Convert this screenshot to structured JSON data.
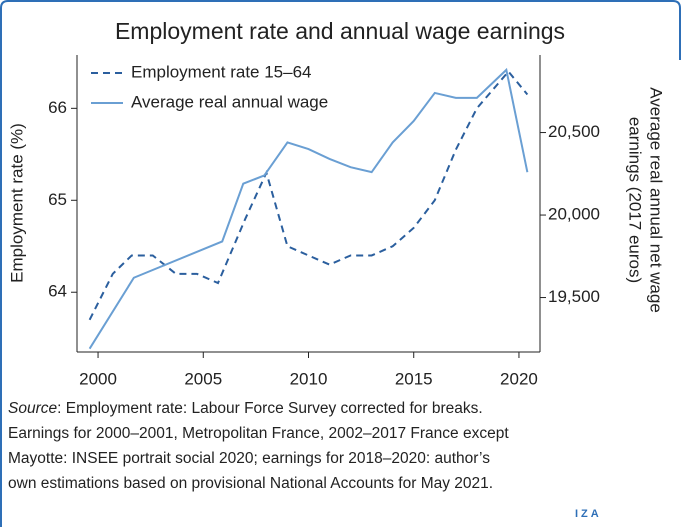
{
  "chart_data": {
    "type": "line",
    "title": "Employment rate and annual wage earnings",
    "ylabel": "Employment rate (%)",
    "y2label": [
      "Average real annual net wage",
      "earnings (2017 euros)"
    ],
    "xlim": [
      1999,
      2021
    ],
    "xticks": [
      2000,
      2005,
      2010,
      2015,
      2020
    ],
    "ylim": [
      63.35,
      66.58
    ],
    "yticks": [
      64,
      65,
      66
    ],
    "y2lim": [
      19170,
      20970
    ],
    "y2ticks": [
      {
        "value": 19500,
        "label": "19,500"
      },
      {
        "value": 20000,
        "label": "20,000"
      },
      {
        "value": 20500,
        "label": "20,500"
      }
    ],
    "legend": "upper left",
    "series": [
      {
        "name": "Employment rate 15–64",
        "color": "#2b5f9e",
        "dash": true,
        "axis": "y",
        "x": [
          1999.6,
          2000.7,
          2001.6,
          2002.6,
          2003.7,
          2004.7,
          2005.7,
          2007.0,
          2008.0,
          2009.0,
          2010.0,
          2011.0,
          2012.0,
          2013.0,
          2014.0,
          2015.0,
          2016.0,
          2017.0,
          2018.0,
          2019.5,
          2020.4
        ],
        "values": [
          63.7,
          64.2,
          64.4,
          64.4,
          64.2,
          64.2,
          64.1,
          64.8,
          65.3,
          64.5,
          64.4,
          64.3,
          64.4,
          64.4,
          64.5,
          64.7,
          65.0,
          65.55,
          66.0,
          66.4,
          66.15
        ]
      },
      {
        "name": "Average real annual wage",
        "color": "#6a9fd3",
        "dash": false,
        "axis": "y2",
        "x": [
          1999.6,
          2001.7,
          2005.9,
          2006.9,
          2007.9,
          2009.0,
          2010.0,
          2011.0,
          2012.0,
          2013.0,
          2014.0,
          2015.0,
          2016.0,
          2017.0,
          2018.0,
          2019.4,
          2020.4
        ],
        "values": [
          19190,
          19620,
          19840,
          20190,
          20240,
          20440,
          20400,
          20340,
          20290,
          20260,
          20440,
          20570,
          20740,
          20710,
          20710,
          20880,
          20260
        ]
      }
    ],
    "source_label": "Source",
    "source_lines": [
      ": Employment rate: Labour Force Survey corrected for breaks.",
      "Earnings for 2000–2001, Metropolitan France, 2002–2017 France except",
      "Mayotte: INSEE portrait social 2020; earnings for 2018–2020: author’s",
      "own estimations based on provisional National Accounts for May 2021."
    ],
    "logo": "IZA"
  }
}
